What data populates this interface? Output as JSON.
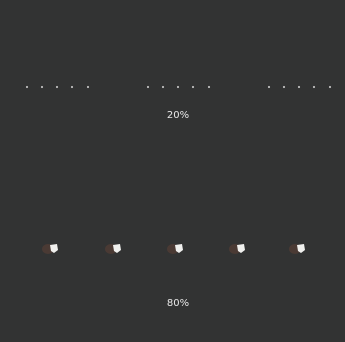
{
  "levels": [
    {
      "label": "20%"
    },
    {
      "label": "80%"
    }
  ]
}
